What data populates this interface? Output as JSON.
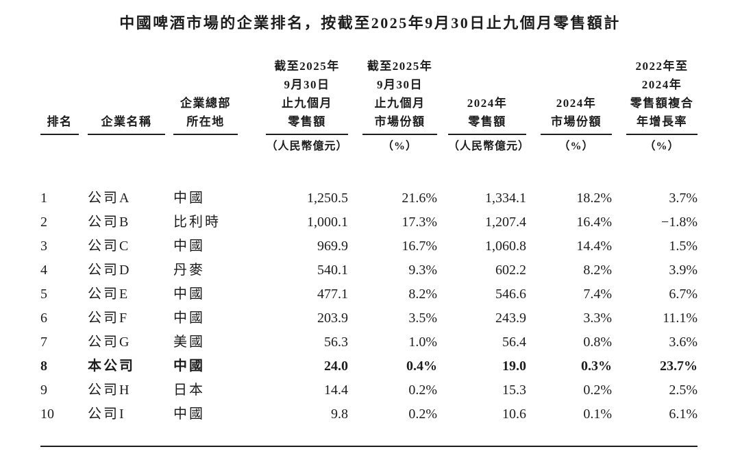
{
  "title": "中國啤酒市場的企業排名，按截至2025年9月30日止九個月零售額計",
  "table": {
    "columns": [
      {
        "id": "rank",
        "header_lines": [
          "排名"
        ],
        "unit": ""
      },
      {
        "id": "company",
        "header_lines": [
          "企業名稱"
        ],
        "unit": ""
      },
      {
        "id": "hq",
        "header_lines": [
          "企業總部",
          "所在地"
        ],
        "unit": ""
      },
      {
        "id": "retail_9m2025",
        "header_lines": [
          "截至2025年",
          "9月30日",
          "止九個月",
          "零售額"
        ],
        "unit": "（人民幣億元）"
      },
      {
        "id": "share_9m2025",
        "header_lines": [
          "截至2025年",
          "9月30日",
          "止九個月",
          "市場份額"
        ],
        "unit": "（%）"
      },
      {
        "id": "retail_2024",
        "header_lines": [
          "2024年",
          "零售額"
        ],
        "unit": "（人民幣億元）"
      },
      {
        "id": "share_2024",
        "header_lines": [
          "2024年",
          "市場份額"
        ],
        "unit": "（%）"
      },
      {
        "id": "cagr",
        "header_lines": [
          "2022年至",
          "2024年",
          "零售額複合",
          "年增長率"
        ],
        "unit": "（%）"
      }
    ],
    "rows": [
      {
        "rank": "1",
        "company": "公司A",
        "hq": "中國",
        "retail_9m2025": "1,250.5",
        "share_9m2025": "21.6%",
        "retail_2024": "1,334.1",
        "share_2024": "18.2%",
        "cagr": "3.7%"
      },
      {
        "rank": "2",
        "company": "公司B",
        "hq": "比利時",
        "retail_9m2025": "1,000.1",
        "share_9m2025": "17.3%",
        "retail_2024": "1,207.4",
        "share_2024": "16.4%",
        "cagr": "−1.8%"
      },
      {
        "rank": "3",
        "company": "公司C",
        "hq": "中國",
        "retail_9m2025": "969.9",
        "share_9m2025": "16.7%",
        "retail_2024": "1,060.8",
        "share_2024": "14.4%",
        "cagr": "1.5%"
      },
      {
        "rank": "4",
        "company": "公司D",
        "hq": "丹麥",
        "retail_9m2025": "540.1",
        "share_9m2025": "9.3%",
        "retail_2024": "602.2",
        "share_2024": "8.2%",
        "cagr": "3.9%"
      },
      {
        "rank": "5",
        "company": "公司E",
        "hq": "中國",
        "retail_9m2025": "477.1",
        "share_9m2025": "8.2%",
        "retail_2024": "546.6",
        "share_2024": "7.4%",
        "cagr": "6.7%"
      },
      {
        "rank": "6",
        "company": "公司F",
        "hq": "中國",
        "retail_9m2025": "203.9",
        "share_9m2025": "3.5%",
        "retail_2024": "243.9",
        "share_2024": "3.3%",
        "cagr": "11.1%"
      },
      {
        "rank": "7",
        "company": "公司G",
        "hq": "美國",
        "retail_9m2025": "56.3",
        "share_9m2025": "1.0%",
        "retail_2024": "56.4",
        "share_2024": "0.8%",
        "cagr": "3.6%"
      },
      {
        "rank": "8",
        "company": "本公司",
        "hq": "中國",
        "retail_9m2025": "24.0",
        "share_9m2025": "0.4%",
        "retail_2024": "19.0",
        "share_2024": "0.3%",
        "cagr": "23.7%"
      },
      {
        "rank": "9",
        "company": "公司H",
        "hq": "日本",
        "retail_9m2025": "14.4",
        "share_9m2025": "0.2%",
        "retail_2024": "15.3",
        "share_2024": "0.2%",
        "cagr": "2.5%"
      },
      {
        "rank": "10",
        "company": "公司I",
        "hq": "中國",
        "retail_9m2025": "9.8",
        "share_9m2025": "0.2%",
        "retail_2024": "10.6",
        "share_2024": "0.1%",
        "cagr": "6.1%"
      }
    ]
  }
}
